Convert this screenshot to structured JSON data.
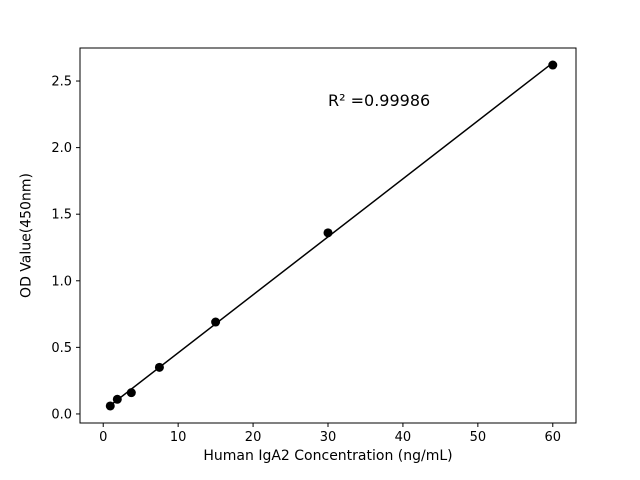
{
  "figure": {
    "background": "#ffffff"
  },
  "chart_data": {
    "type": "scatter",
    "title": "",
    "xlabel": "Human IgA2 Concentration (ng/mL)",
    "ylabel": "OD Value(450nm)",
    "annotation": {
      "text": "R² =0.99986",
      "x": 30,
      "y": 2.34
    },
    "x": [
      0.94,
      1.88,
      3.75,
      7.5,
      15,
      30,
      60
    ],
    "y": [
      0.06,
      0.11,
      0.16,
      0.35,
      0.69,
      1.36,
      2.62
    ],
    "xticks": [
      0,
      10,
      20,
      30,
      40,
      50,
      60
    ],
    "xtick_labels": [
      "0",
      "10",
      "20",
      "30",
      "40",
      "50",
      "60"
    ],
    "yticks": [
      0.0,
      0.5,
      1.0,
      1.5,
      2.0,
      2.5
    ],
    "ytick_labels": [
      "0.0",
      "0.5",
      "1.0",
      "1.5",
      "2.0",
      "2.5"
    ],
    "xlim": [
      -3.1,
      63.1
    ],
    "ylim": [
      -0.068,
      2.748
    ],
    "grid": false,
    "legend": null,
    "fit_line": true,
    "marker": "circle",
    "marker_color": "#000000",
    "line_color": "#000000"
  }
}
